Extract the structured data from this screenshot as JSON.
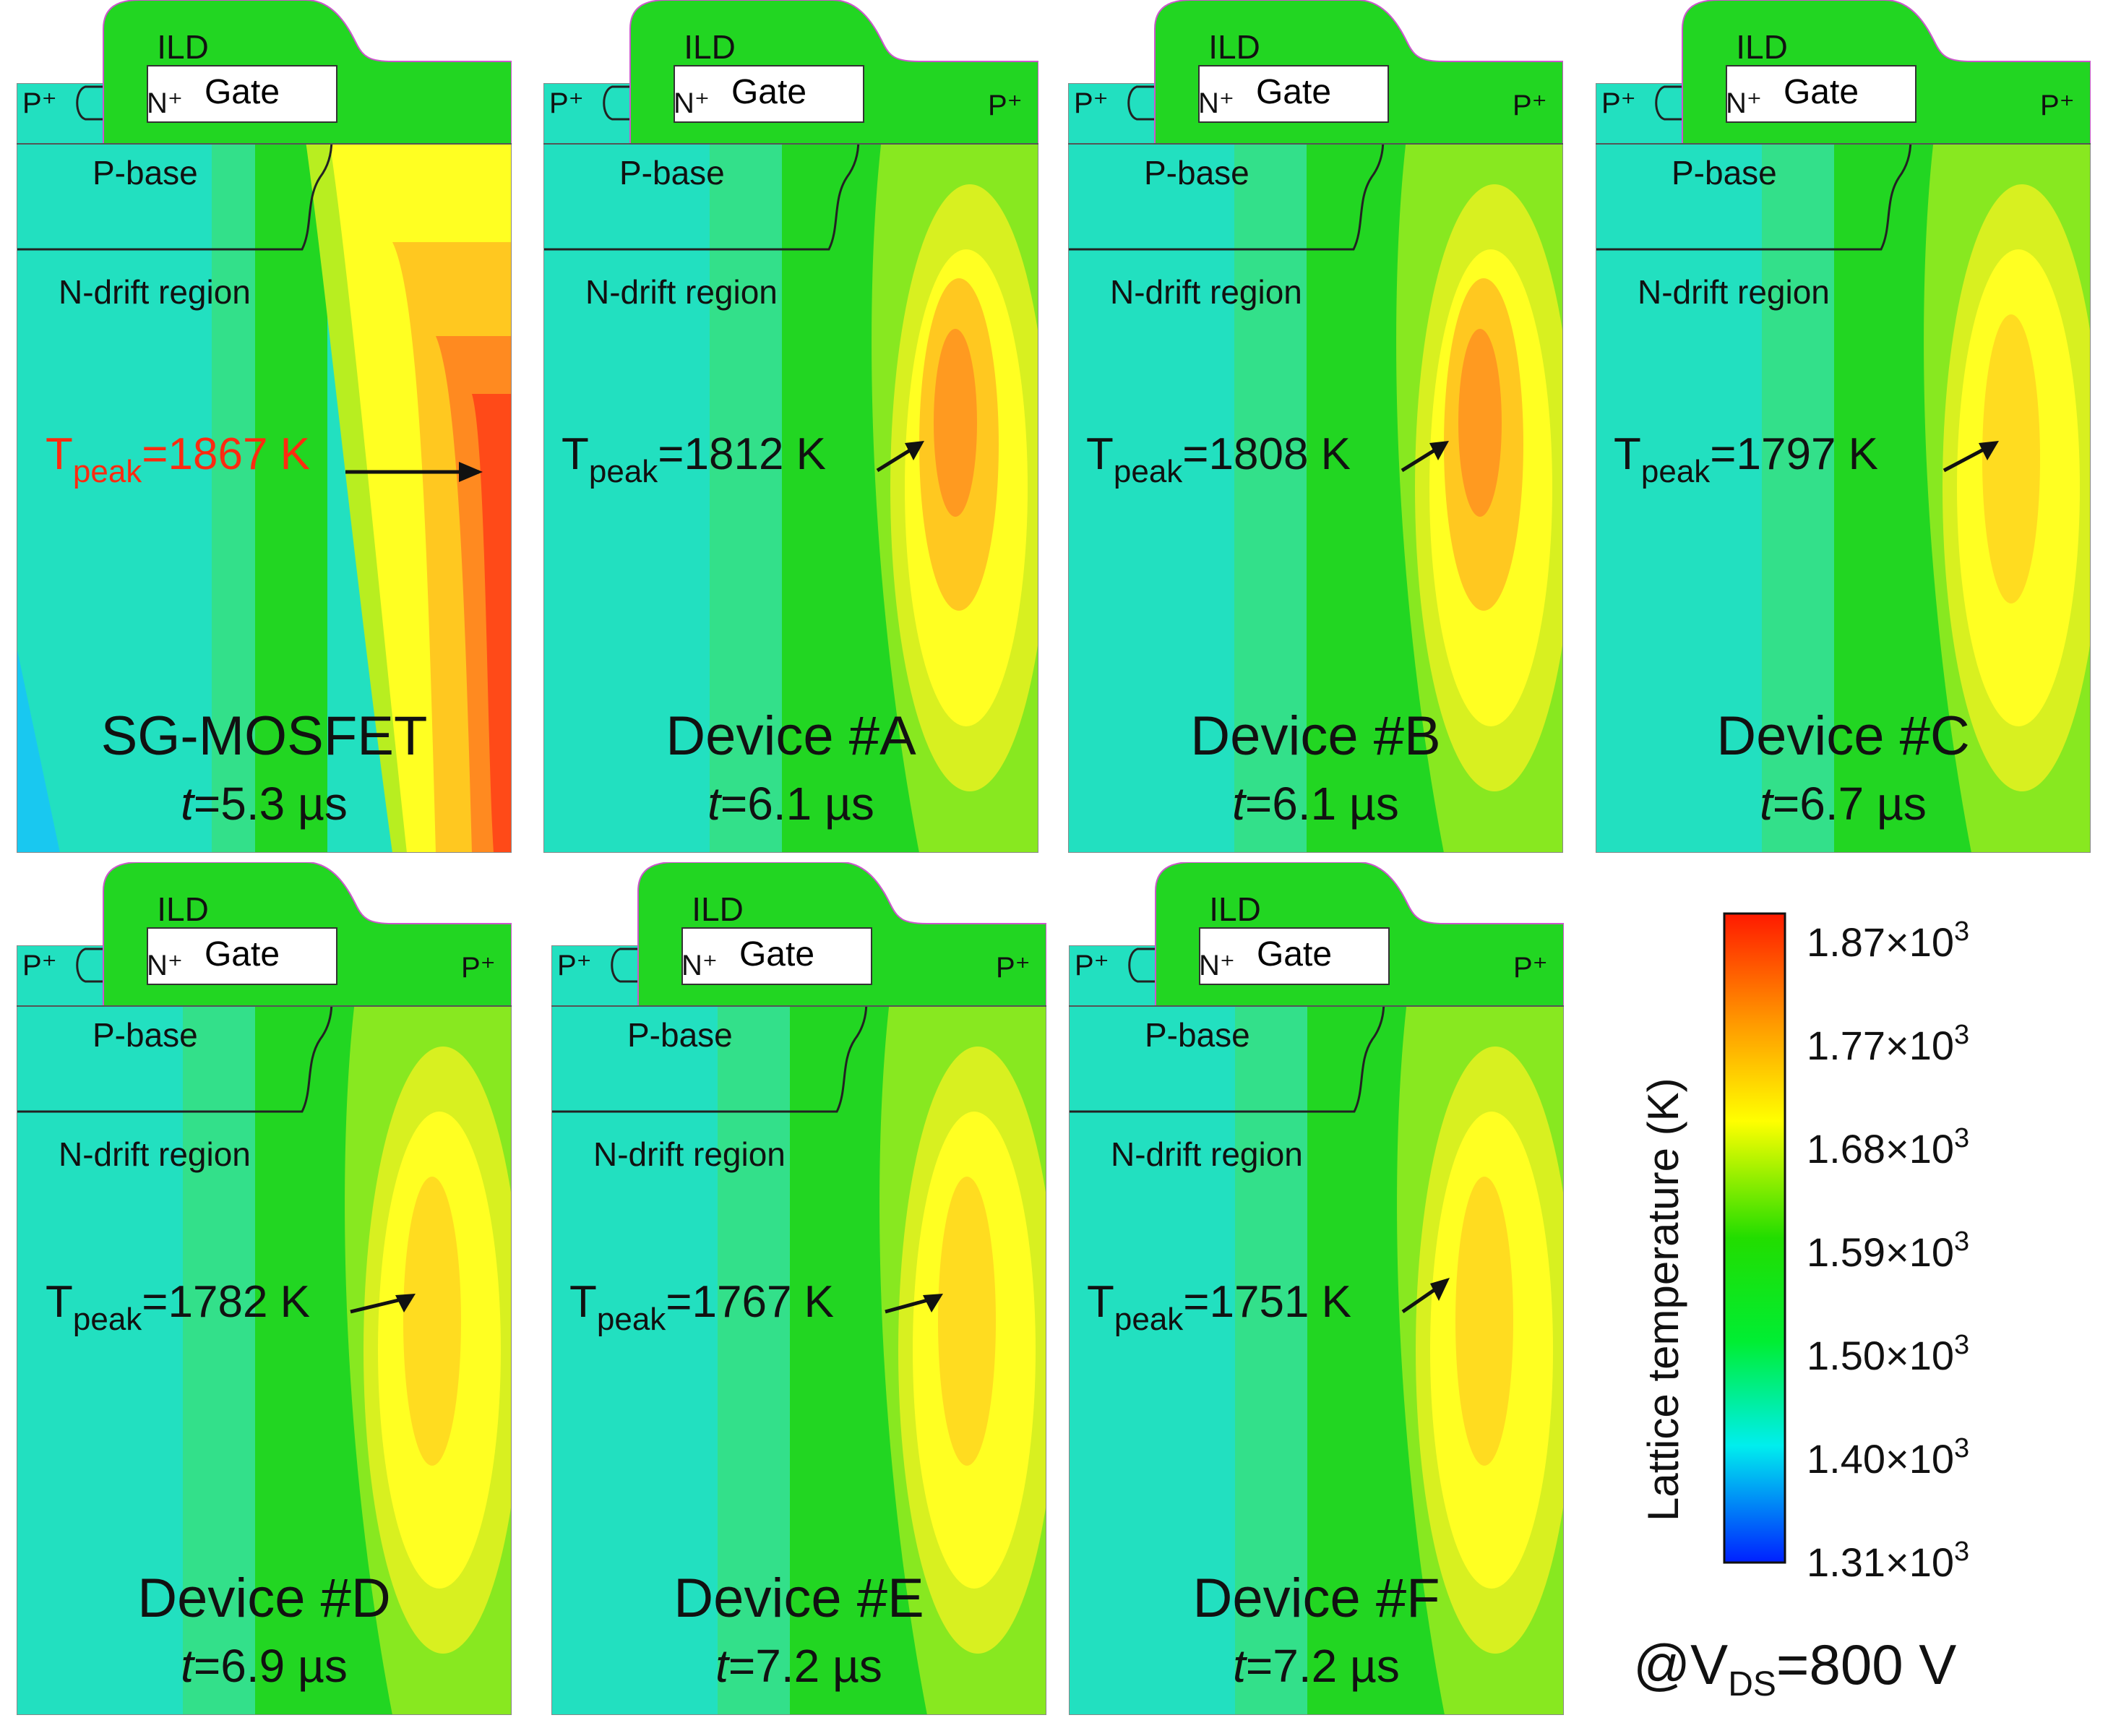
{
  "common_labels": {
    "ild": "ILD",
    "gate": "Gate",
    "p_plus": "P⁺",
    "n_plus": "N⁺",
    "p_base": "P-base",
    "n_drift": "N-drift region",
    "t_prefix": "T",
    "t_sub": "peak",
    "time_var": "t"
  },
  "devices": [
    {
      "name": "SG-MOSFET",
      "tpeak": "=1867 K",
      "time": "=5.3 µs",
      "right_p_plus": false,
      "highlight": true
    },
    {
      "name": "Device #A",
      "tpeak": "=1812 K",
      "time": "=6.1 µs",
      "right_p_plus": true,
      "highlight": false
    },
    {
      "name": "Device #B",
      "tpeak": "=1808 K",
      "time": "=6.1 µs",
      "right_p_plus": true,
      "highlight": false
    },
    {
      "name": "Device #C",
      "tpeak": "=1797 K",
      "time": "=6.7 µs",
      "right_p_plus": true,
      "highlight": false
    },
    {
      "name": "Device #D",
      "tpeak": "=1782 K",
      "time": "=6.9 µs",
      "right_p_plus": true,
      "highlight": false
    },
    {
      "name": "Device #E",
      "tpeak": "=1767 K",
      "time": "=7.2 µs",
      "right_p_plus": true,
      "highlight": false
    },
    {
      "name": "Device #F",
      "tpeak": "=1751 K",
      "time": "=7.2 µs",
      "right_p_plus": true,
      "highlight": false
    }
  ],
  "legend": {
    "title": "Lattice temperature (K)",
    "ticks": [
      {
        "mant": "1.87×10",
        "exp": "3"
      },
      {
        "mant": "1.77×10",
        "exp": "3"
      },
      {
        "mant": "1.68×10",
        "exp": "3"
      },
      {
        "mant": "1.59×10",
        "exp": "3"
      },
      {
        "mant": "1.50×10",
        "exp": "3"
      },
      {
        "mant": "1.40×10",
        "exp": "3"
      },
      {
        "mant": "1.31×10",
        "exp": "3"
      }
    ],
    "colors": [
      "#ff1a00",
      "#ff9a00",
      "#ffff00",
      "#22dd00",
      "#00ee33",
      "#00eeee",
      "#0020ff"
    ]
  },
  "bias": {
    "prefix": "@V",
    "sub": "DS",
    "value": "=800 V"
  }
}
